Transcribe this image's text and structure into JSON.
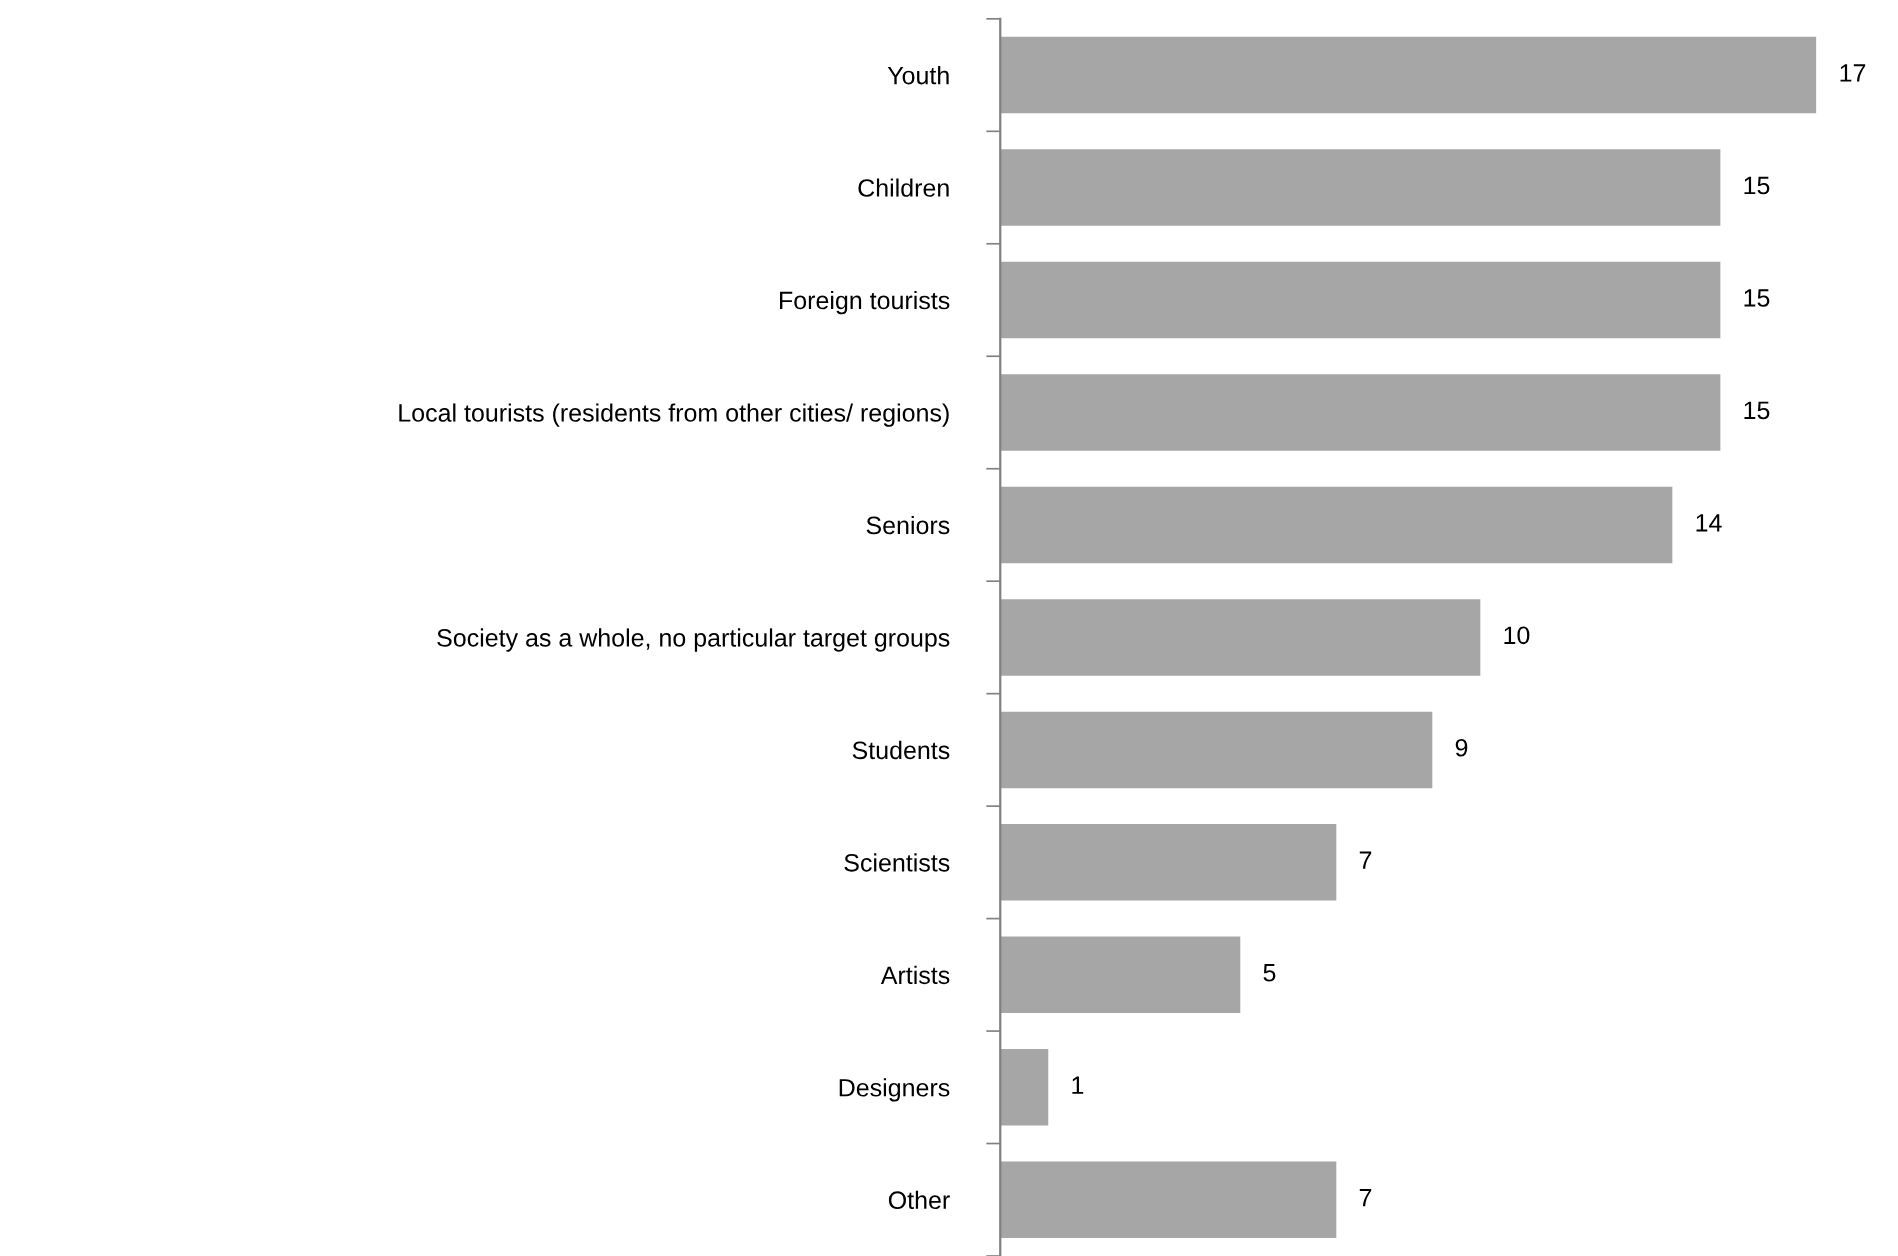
{
  "chart_data": {
    "type": "bar",
    "orientation": "horizontal",
    "categories": [
      "Youth",
      "Children",
      "Foreign tourists",
      "Local tourists (residents from other cities/ regions)",
      "Seniors",
      "Society as a whole, no particular target groups",
      "Students",
      "Scientists",
      "Artists",
      "Designers",
      "Other"
    ],
    "values": [
      17,
      15,
      15,
      15,
      14,
      10,
      9,
      7,
      5,
      1,
      7
    ],
    "color": "#a6a6a6",
    "data_labels": true,
    "grid": false,
    "legend": false
  }
}
